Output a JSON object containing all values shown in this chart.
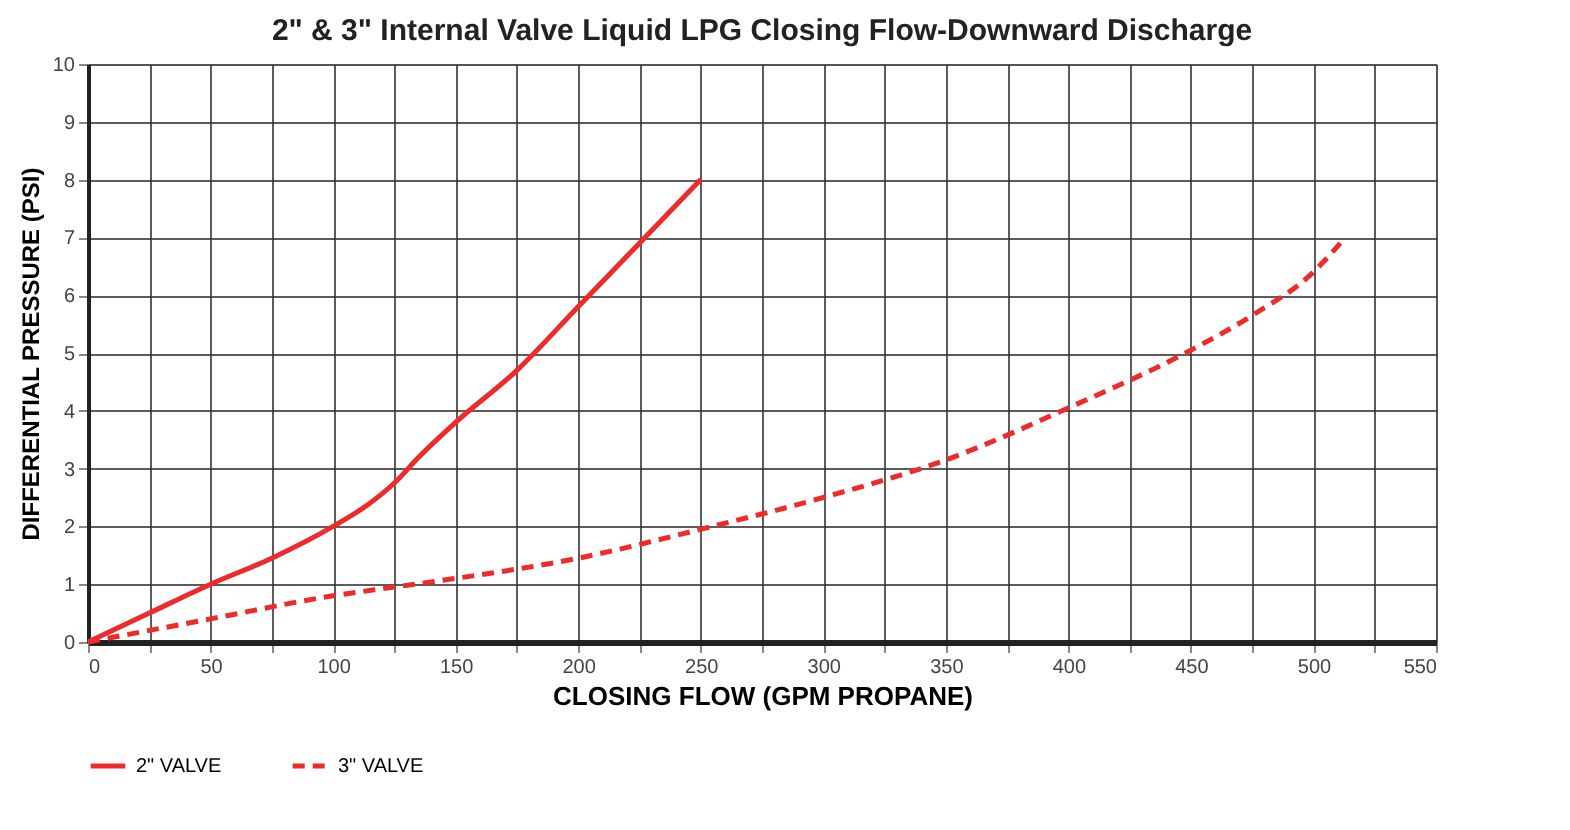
{
  "chart_data": {
    "type": "line",
    "title": "2\" &  3\" Internal Valve Liquid LPG Closing Flow-Downward Discharge",
    "xlabel": "CLOSING FLOW (GPM PROPANE)",
    "ylabel": "DIFFERENTIAL PRESSURE (PSI)",
    "series": [
      {
        "name": "2\" VALVE",
        "color": "#ee2a2a",
        "line_style": "solid",
        "x": [
          0,
          25,
          50,
          75,
          100,
          115,
          125,
          135,
          150,
          175,
          200,
          225,
          250
        ],
        "values": [
          0,
          0.5,
          1,
          1.45,
          2,
          2.4,
          2.75,
          3.2,
          3.8,
          4.7,
          5.8,
          6.9,
          8
        ]
      },
      {
        "name": "3\" VALVE",
        "color": "#ee2a2a",
        "line_style": "dashed",
        "x": [
          0,
          50,
          100,
          125,
          150,
          200,
          250,
          300,
          350,
          400,
          450,
          475,
          500,
          512
        ],
        "values": [
          0,
          0.4,
          0.8,
          0.95,
          1.1,
          1.45,
          1.95,
          2.5,
          3.15,
          4.05,
          5.05,
          5.65,
          6.4,
          6.95
        ]
      }
    ],
    "xlim": [
      0,
      550
    ],
    "ylim": [
      0,
      10
    ],
    "xticks": [
      0,
      {
        "value": 25,
        "label": null
      },
      50,
      {
        "value": 75,
        "label": null
      },
      100,
      {
        "value": 125,
        "label": null
      },
      150,
      {
        "value": 175,
        "label": null
      },
      200,
      {
        "value": 225,
        "label": null
      },
      250,
      {
        "value": 275,
        "label": null
      },
      300,
      {
        "value": 325,
        "label": null
      },
      350,
      {
        "value": 375,
        "label": null
      },
      400,
      {
        "value": 425,
        "label": null
      },
      450,
      {
        "value": 475,
        "label": null
      },
      500,
      {
        "value": 525,
        "label": null
      },
      550
    ],
    "yticks": [
      0,
      1,
      2,
      3,
      4,
      5,
      6,
      7,
      8,
      9,
      10
    ],
    "grid": true,
    "legend": "bottom left",
    "marker": "none"
  }
}
